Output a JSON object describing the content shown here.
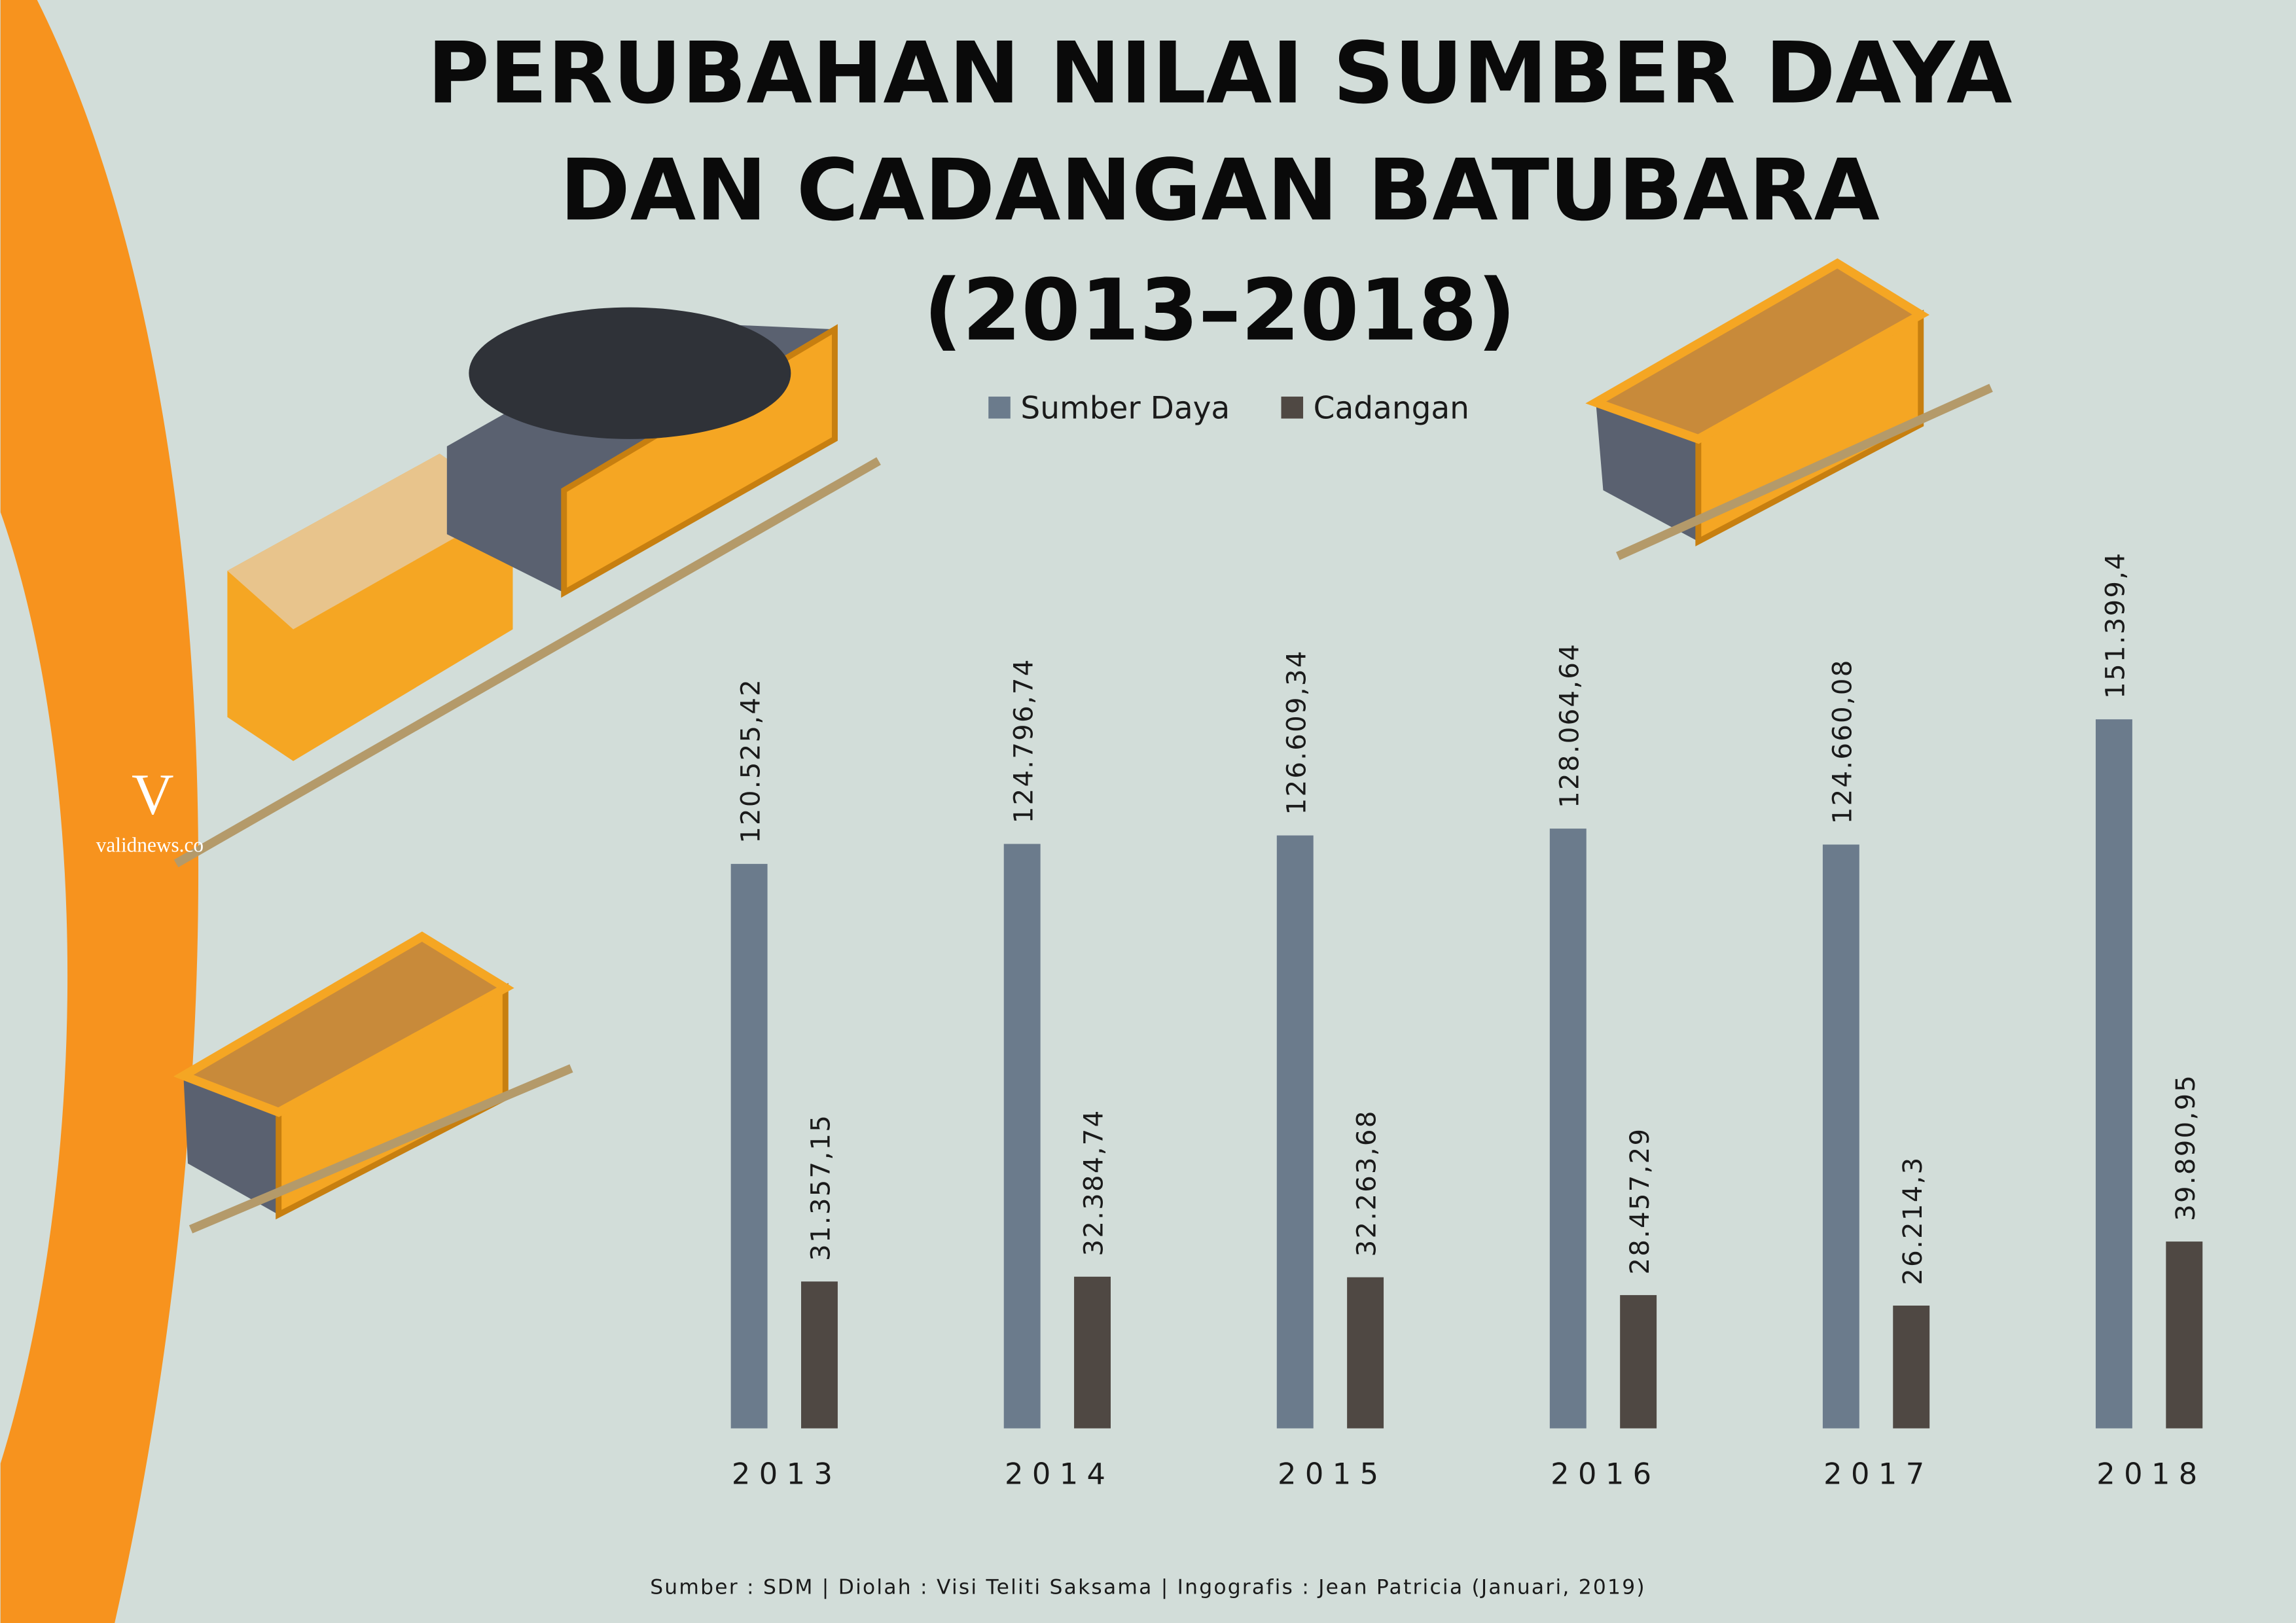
{
  "chart_data": {
    "type": "bar",
    "title": [
      "PERUBAHAN NILAI SUMBER DAYA",
      "DAN CADANGAN BATUBARA",
      "(2013–2018)"
    ],
    "categories": [
      "2013",
      "2014",
      "2015",
      "2016",
      "2017",
      "2018"
    ],
    "series": [
      {
        "name": "Sumber Daya",
        "color": "#6b7b8c",
        "values": [
          120525.42,
          124796.74,
          126609.34,
          128064.64,
          124660.08,
          151399.4
        ],
        "value_labels": [
          "120.525,42",
          "124.796,74",
          "126.609,34",
          "128.064,64",
          "124.660,08",
          "151.399,4"
        ]
      },
      {
        "name": "Cadangan",
        "color": "#4f4843",
        "values": [
          31357.15,
          32384.74,
          32263.68,
          28457.29,
          26214.3,
          39890.95
        ],
        "value_labels": [
          "31.357,15",
          "32.384,74",
          "32.263,68",
          "28.457,29",
          "26.214,3",
          "39.890,95"
        ]
      }
    ],
    "source": "Sumber : SDM | Diolah : Visi Teliti Saksama | Ingografis : Jean Patricia (Januari, 2019)",
    "logo": "validnews.co"
  }
}
